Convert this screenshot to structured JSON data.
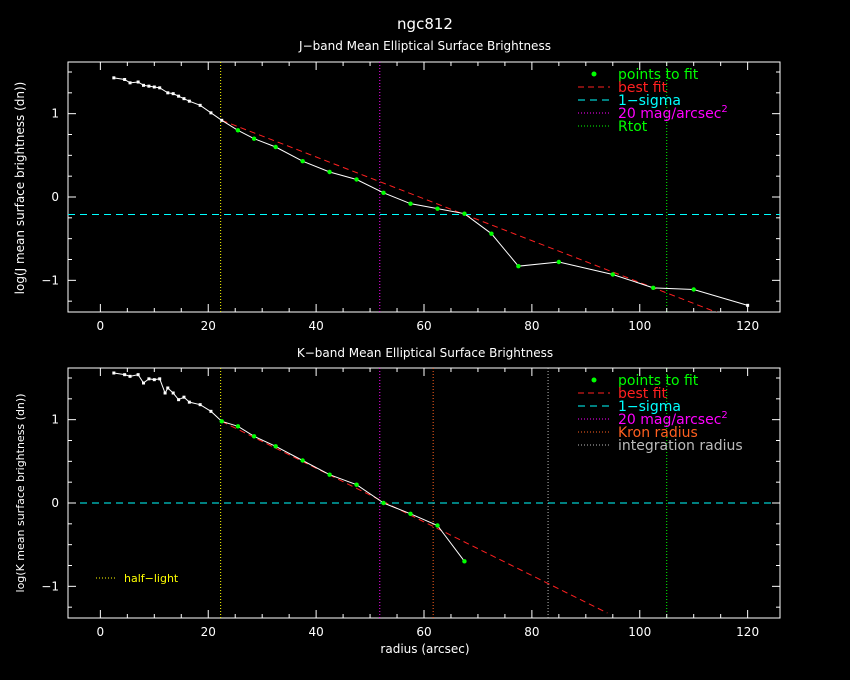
{
  "main_title": "ngc812",
  "colors": {
    "background": "#000000",
    "axes": "#ffffff",
    "points_to_fit": "#00ff00",
    "best_fit": "#ff2020",
    "one_sigma": "#00ffff",
    "mag20": "#ff00ff",
    "rtot": "#00ff00",
    "kron": "#ff5f1f",
    "integration": "#bbbbbb",
    "half_light": "#ffff00"
  },
  "chart_data": [
    {
      "type": "line",
      "title": "J−band Mean Elliptical Surface Brightness",
      "xlabel": "",
      "ylabel": "log(J mean surface brightness (dn))",
      "xlim": [
        -6,
        126
      ],
      "ylim": [
        -1.38,
        1.62
      ],
      "xticks": [
        0,
        20,
        40,
        60,
        80,
        100,
        120
      ],
      "xtick_labels": [
        "0",
        "20",
        "40",
        "60",
        "80",
        "100",
        "120"
      ],
      "yticks": [
        1,
        0,
        -1
      ],
      "ytick_labels": [
        "1",
        "0",
        "−1"
      ],
      "legend": [
        {
          "key": "points",
          "label": "points to fit"
        },
        {
          "key": "best",
          "label": "best fit"
        },
        {
          "key": "sigma",
          "label": "1−sigma"
        },
        {
          "key": "mag20",
          "label": "20 mag/arcsec",
          "sup": "2"
        },
        {
          "key": "rtot",
          "label": "Rtot"
        }
      ],
      "legend_position": "top-right",
      "profile_x": [
        2.5,
        4.5,
        5.5,
        7.0,
        8.0,
        9.0,
        10.0,
        11.0,
        12.5,
        13.5,
        14.5,
        15.5,
        16.5,
        18.5,
        20.5,
        22.5,
        25.5,
        28.5,
        32.5,
        37.5,
        42.5,
        47.5,
        52.5,
        57.5,
        62.5,
        67.5,
        72.5,
        77.5,
        85.0,
        95.0,
        102.5,
        110.0,
        120.0
      ],
      "profile_y": [
        1.43,
        1.41,
        1.37,
        1.38,
        1.34,
        1.33,
        1.32,
        1.31,
        1.25,
        1.24,
        1.21,
        1.18,
        1.15,
        1.1,
        1.01,
        0.92,
        0.8,
        0.7,
        0.6,
        0.43,
        0.3,
        0.21,
        0.05,
        -0.08,
        -0.14,
        -0.2,
        -0.44,
        -0.83,
        -0.78,
        -0.93,
        -1.09,
        -1.11,
        -1.3
      ],
      "fit_points_x": [
        25.5,
        28.5,
        32.5,
        37.5,
        42.5,
        47.5,
        52.5,
        57.5,
        62.5,
        67.5,
        72.5,
        77.5,
        85.0,
        95.0,
        102.5,
        110.0
      ],
      "fit_points_y": [
        0.8,
        0.7,
        0.6,
        0.43,
        0.3,
        0.21,
        0.05,
        -0.08,
        -0.14,
        -0.2,
        -0.44,
        -0.83,
        -0.78,
        -0.93,
        -1.09,
        -1.11
      ],
      "best_fit_x": [
        22.5,
        114.5
      ],
      "best_fit_y": [
        0.92,
        -1.39
      ],
      "sigma_y": -0.21,
      "mag20_x": 51.8,
      "rtot_x": 105.0,
      "half_light_x": 22.3
    },
    {
      "type": "line",
      "title": "K−band Mean Elliptical Surface Brightness",
      "xlabel": "radius (arcsec)",
      "ylabel": "log(K mean surface brightness (dn))",
      "xlim": [
        -6,
        126
      ],
      "ylim": [
        -1.38,
        1.62
      ],
      "xticks": [
        0,
        20,
        40,
        60,
        80,
        100,
        120
      ],
      "xtick_labels": [
        "0",
        "20",
        "40",
        "60",
        "80",
        "100",
        "120"
      ],
      "yticks": [
        1,
        0,
        -1
      ],
      "ytick_labels": [
        "1",
        "0",
        "−1"
      ],
      "legend": [
        {
          "key": "points",
          "label": "points to fit"
        },
        {
          "key": "best",
          "label": "best fit"
        },
        {
          "key": "sigma",
          "label": "1−sigma"
        },
        {
          "key": "mag20",
          "label": "20 mag/arcsec",
          "sup": "2"
        },
        {
          "key": "kron",
          "label": "Kron radius"
        },
        {
          "key": "integration",
          "label": "integration radius"
        }
      ],
      "legend_position": "top-right",
      "half_light_label": "half−light",
      "profile_x": [
        2.5,
        4.5,
        5.5,
        7.0,
        8.0,
        9.0,
        10.0,
        11.0,
        12.0,
        12.5,
        13.5,
        14.5,
        15.5,
        16.5,
        18.5,
        20.5,
        22.5,
        25.5,
        28.5,
        32.5,
        37.5,
        42.5,
        47.5,
        52.5,
        57.5,
        62.5,
        67.5
      ],
      "profile_y": [
        1.56,
        1.54,
        1.52,
        1.54,
        1.44,
        1.49,
        1.48,
        1.49,
        1.32,
        1.38,
        1.32,
        1.24,
        1.27,
        1.21,
        1.18,
        1.1,
        0.98,
        0.92,
        0.8,
        0.68,
        0.51,
        0.34,
        0.22,
        0.0,
        -0.13,
        -0.27,
        -0.7
      ],
      "fit_points_x": [
        22.5,
        25.5,
        28.5,
        32.5,
        37.5,
        42.5,
        47.5,
        52.5,
        57.5,
        62.5,
        67.5
      ],
      "fit_points_y": [
        0.98,
        0.92,
        0.8,
        0.68,
        0.51,
        0.34,
        0.22,
        0.0,
        -0.13,
        -0.27,
        -0.7
      ],
      "best_fit_x": [
        22.5,
        94.0
      ],
      "best_fit_y": [
        0.98,
        -1.32
      ],
      "sigma_y": 0.0,
      "mag20_x": 51.8,
      "rtot_x": 105.0,
      "kron_x": 61.7,
      "integration_x": 83.0,
      "half_light_x": 22.3
    }
  ]
}
